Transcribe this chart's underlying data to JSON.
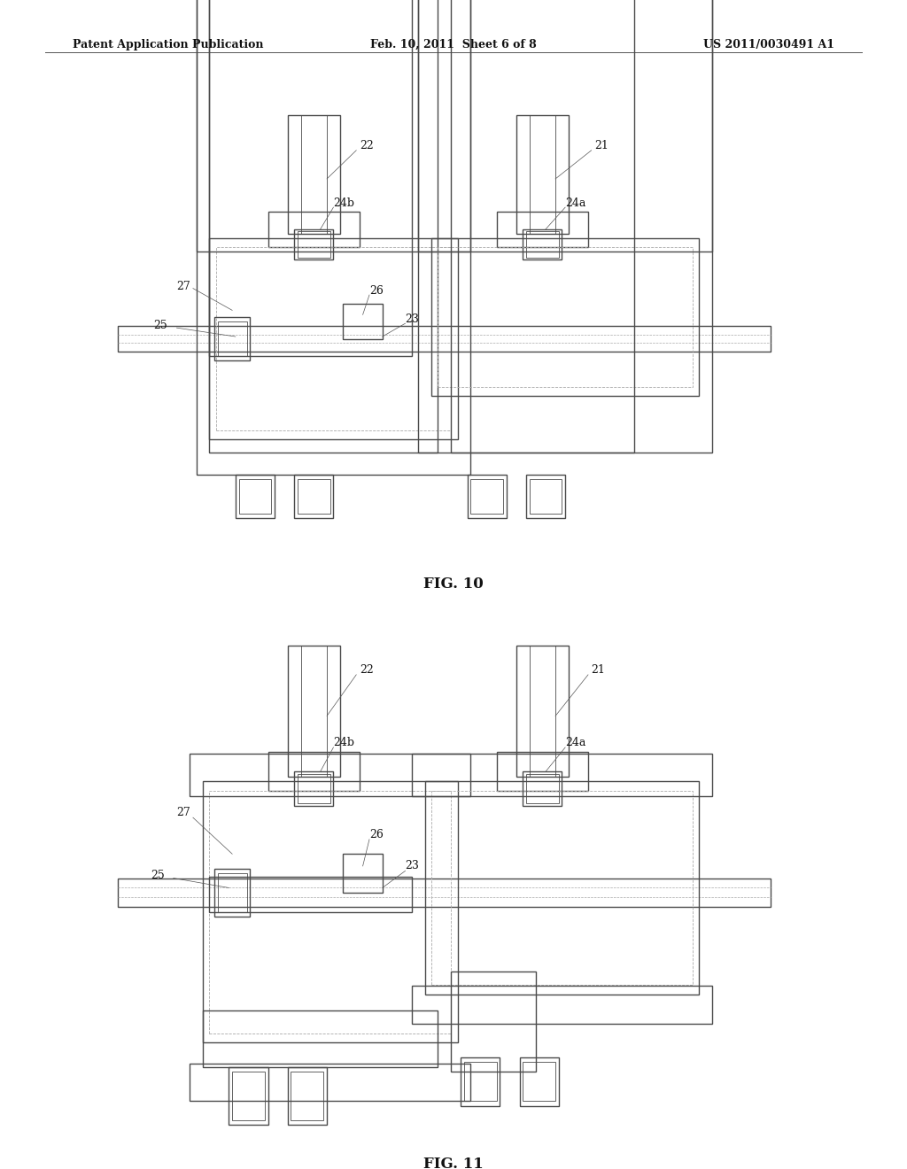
{
  "background_color": "#ffffff",
  "header_left": "Patent Application Publication",
  "header_mid": "Feb. 10, 2011  Sheet 6 of 8",
  "header_right": "US 2011/0030491 A1",
  "header_fontsize": 9,
  "fig10_label": "FIG. 10",
  "fig11_label": "FIG. 11",
  "line_color": "#4a4a4a",
  "line_color_light": "#aaaaaa",
  "label_fontsize": 9,
  "caption_fontsize": 12
}
